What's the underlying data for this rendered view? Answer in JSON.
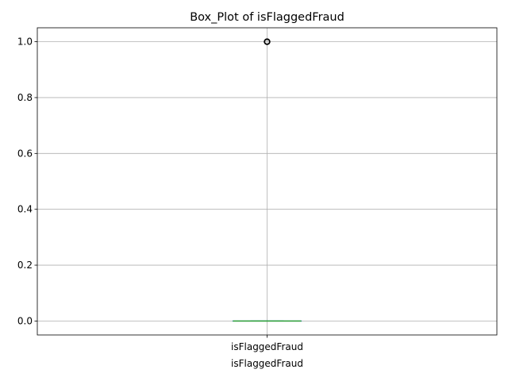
{
  "chart_data": {
    "type": "box",
    "title": "Box_Plot of isFlaggedFraud",
    "xlabel": "isFlaggedFraud",
    "ylabel": "",
    "categories": [
      "isFlaggedFraud"
    ],
    "ylim": [
      -0.05,
      1.05
    ],
    "yticks": [
      0.0,
      0.2,
      0.4,
      0.6,
      0.8,
      1.0
    ],
    "ytick_labels": [
      "0.0",
      "0.2",
      "0.4",
      "0.6",
      "0.8",
      "1.0"
    ],
    "grid": true,
    "series": [
      {
        "whisker_low": 0.0,
        "q1": 0.0,
        "median": 0.0,
        "q3": 0.0,
        "whisker_high": 0.0,
        "outliers": [
          1.0
        ]
      }
    ],
    "colors": {
      "box": "#1f77b4",
      "median": "#2ca02c",
      "grid": "#b0b0b0",
      "outlier": "#000000"
    }
  }
}
